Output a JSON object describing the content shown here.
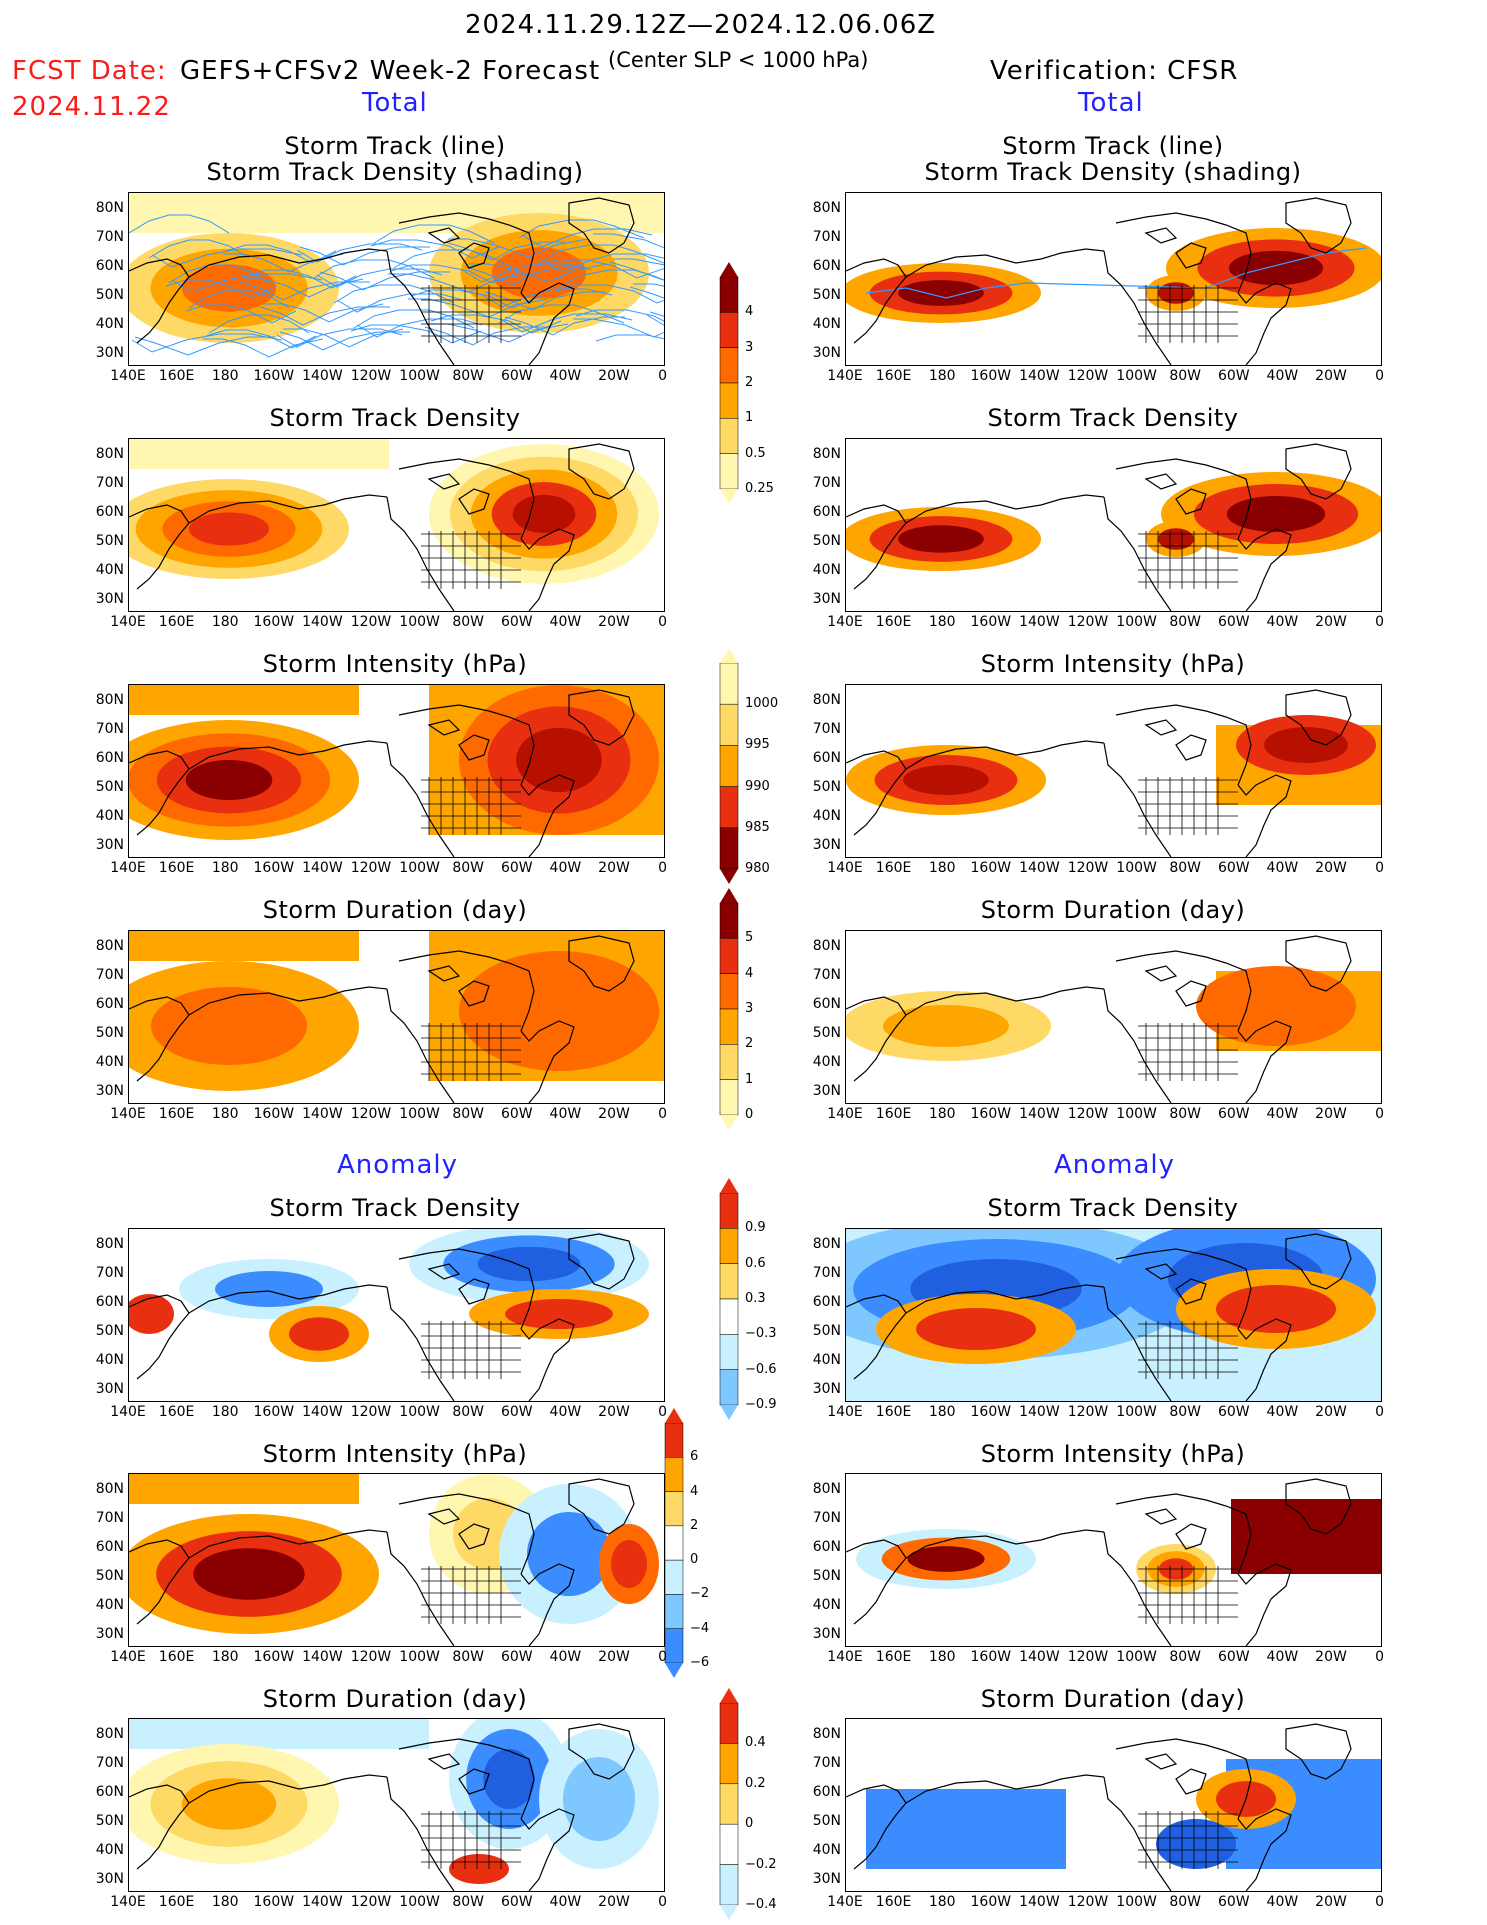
{
  "header": {
    "period": "2024.11.29.12Z—2024.12.06.06Z",
    "fcst_label": "FCST Date:",
    "fcst_date": "2024.11.22",
    "forecast_title": "GEFS+CFSv2 Week-2 Forecast",
    "criterion": "(Center SLP < 1000 hPa)",
    "verification": "Verification: CFSR"
  },
  "sections": {
    "total_left": "Total",
    "total_right": "Total",
    "anomaly_left": "Anomaly",
    "anomaly_right": "Anomaly"
  },
  "titles": {
    "track_line": "Storm Track (line)",
    "track_shading": "Storm Track Density (shading)",
    "density": "Storm Track Density",
    "intensity": "Storm Intensity (hPa)",
    "duration": "Storm Duration (day)"
  },
  "axes": {
    "lat_labels": [
      "80N",
      "70N",
      "60N",
      "50N",
      "40N",
      "30N"
    ],
    "lon_labels": [
      "140E",
      "160E",
      "180",
      "160W",
      "140W",
      "120W",
      "100W",
      "80W",
      "60W",
      "40W",
      "20W",
      "0"
    ]
  },
  "colorbars": {
    "density_total": [
      "4",
      "3",
      "2",
      "1",
      "0.5",
      "0.25"
    ],
    "intensity_total": [
      "1000",
      "995",
      "990",
      "985",
      "980"
    ],
    "duration_total": [
      "5",
      "4",
      "3",
      "2",
      "1",
      "0"
    ],
    "density_anom": [
      "0.9",
      "0.6",
      "0.3",
      "−0.3",
      "−0.6",
      "−0.9"
    ],
    "intensity_anom": [
      "6",
      "4",
      "2",
      "0",
      "−2",
      "−4",
      "−6"
    ],
    "duration_anom": [
      "0.4",
      "0.2",
      "0",
      "−0.2",
      "−0.4"
    ]
  },
  "colors": {
    "warm": [
      "#fff6b0",
      "#ffd966",
      "#ffa500",
      "#ff6a00",
      "#e83010",
      "#b81000",
      "#8a0000"
    ],
    "cool": [
      "#c8f0ff",
      "#7ec8ff",
      "#3a8cff",
      "#1f5fe0"
    ],
    "track_lines": "#3399ff"
  }
}
